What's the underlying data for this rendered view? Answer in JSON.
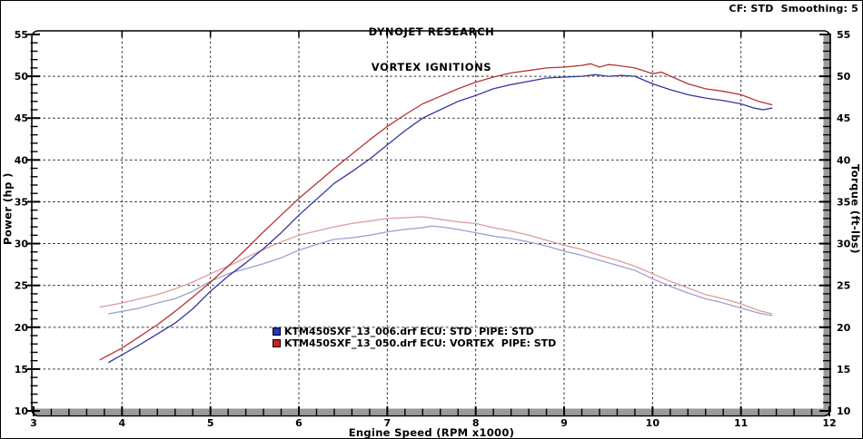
{
  "header": {
    "title_line1": "DYNOJET RESEARCH",
    "title_line2": "VORTEX IGNITIONS",
    "settings": "CF: STD  Smoothing: 5"
  },
  "axes": {
    "left_label": "Power (hp )",
    "right_label": "Torque (ft-lbs)",
    "x_label": "Engine Speed (RPM x1000)"
  },
  "legend": [
    {
      "color": "#2233cc",
      "label": "KTM450SXF_13_006.drf ECU: STD  PIPE: STD"
    },
    {
      "color": "#cc2222",
      "label": "KTM450SXF_13_050.drf ECU: VORTEX  PIPE: STD"
    }
  ],
  "chart_data": {
    "type": "line",
    "title": "DYNOJET RESEARCH VORTEX IGNITIONS",
    "xlabel": "Engine Speed (RPM x1000)",
    "ylabel_left": "Power (hp)",
    "ylabel_right": "Torque (ft-lbs)",
    "x_range": [
      3,
      12
    ],
    "y_range": [
      10,
      55
    ],
    "x_ticks": [
      3,
      4,
      5,
      6,
      7,
      8,
      9,
      10,
      11,
      12
    ],
    "y_ticks": [
      10,
      15,
      20,
      25,
      30,
      35,
      40,
      45,
      50,
      55
    ],
    "x_grid": [
      4,
      5,
      6,
      7,
      8,
      9,
      10,
      11
    ],
    "y_grid": [
      15,
      20,
      25,
      30,
      35,
      40,
      45,
      50
    ],
    "x_minor_step": 0.2,
    "y_minor_step": 1,
    "grid": {
      "color": "#2b2b2b",
      "gray_color": "#999999",
      "gray_line_value": 20
    },
    "frame": {
      "border_color": "#000000",
      "shadow_color": "#9a9a9a"
    },
    "series": [
      {
        "id": "torque-std",
        "name": "KTM450SXF_13_006.drf Torque (ft-lbs)",
        "color": "#9f9fd0",
        "points": [
          [
            3.85,
            21.6
          ],
          [
            4,
            21.9
          ],
          [
            4.2,
            22.3
          ],
          [
            4.4,
            22.9
          ],
          [
            4.6,
            23.4
          ],
          [
            4.8,
            24.3
          ],
          [
            5,
            25.5
          ],
          [
            5.2,
            26.4
          ],
          [
            5.4,
            27.0
          ],
          [
            5.6,
            27.6
          ],
          [
            5.8,
            28.3
          ],
          [
            6,
            29.2
          ],
          [
            6.2,
            29.9
          ],
          [
            6.4,
            30.5
          ],
          [
            6.6,
            30.7
          ],
          [
            6.8,
            31.0
          ],
          [
            7,
            31.4
          ],
          [
            7.2,
            31.7
          ],
          [
            7.4,
            31.9
          ],
          [
            7.5,
            32.1
          ],
          [
            7.6,
            32.0
          ],
          [
            7.8,
            31.7
          ],
          [
            8,
            31.3
          ],
          [
            8.2,
            30.9
          ],
          [
            8.4,
            30.6
          ],
          [
            8.6,
            30.2
          ],
          [
            8.8,
            29.7
          ],
          [
            9,
            29.1
          ],
          [
            9.2,
            28.6
          ],
          [
            9.4,
            28.0
          ],
          [
            9.6,
            27.4
          ],
          [
            9.8,
            26.8
          ],
          [
            10,
            25.8
          ],
          [
            10.2,
            24.9
          ],
          [
            10.4,
            24.1
          ],
          [
            10.6,
            23.4
          ],
          [
            10.8,
            22.9
          ],
          [
            11,
            22.3
          ],
          [
            11.2,
            21.7
          ],
          [
            11.35,
            21.4
          ]
        ]
      },
      {
        "id": "torque-vortex",
        "name": "KTM450SXF_13_050.drf Torque (ft-lbs)",
        "color": "#dd9c9c",
        "points": [
          [
            3.75,
            22.4
          ],
          [
            4,
            22.9
          ],
          [
            4.2,
            23.4
          ],
          [
            4.4,
            23.9
          ],
          [
            4.6,
            24.6
          ],
          [
            4.8,
            25.4
          ],
          [
            5,
            26.4
          ],
          [
            5.2,
            27.3
          ],
          [
            5.4,
            28.3
          ],
          [
            5.6,
            29.3
          ],
          [
            5.8,
            30.2
          ],
          [
            6,
            31.0
          ],
          [
            6.2,
            31.5
          ],
          [
            6.4,
            32.0
          ],
          [
            6.6,
            32.4
          ],
          [
            6.8,
            32.7
          ],
          [
            7,
            33.0
          ],
          [
            7.2,
            33.1
          ],
          [
            7.4,
            33.2
          ],
          [
            7.6,
            32.9
          ],
          [
            7.8,
            32.6
          ],
          [
            8,
            32.4
          ],
          [
            8.2,
            31.9
          ],
          [
            8.4,
            31.5
          ],
          [
            8.6,
            31.0
          ],
          [
            8.8,
            30.4
          ],
          [
            9,
            29.8
          ],
          [
            9.2,
            29.3
          ],
          [
            9.4,
            28.6
          ],
          [
            9.6,
            28.0
          ],
          [
            9.8,
            27.3
          ],
          [
            10,
            26.4
          ],
          [
            10.2,
            25.5
          ],
          [
            10.4,
            24.7
          ],
          [
            10.6,
            23.9
          ],
          [
            10.8,
            23.4
          ],
          [
            11,
            22.8
          ],
          [
            11.2,
            22.0
          ],
          [
            11.35,
            21.6
          ]
        ]
      },
      {
        "id": "power-std",
        "name": "KTM450SXF_13_006.drf Power (hp)",
        "color": "#3535a2",
        "points": [
          [
            3.85,
            15.8
          ],
          [
            4,
            16.7
          ],
          [
            4.2,
            17.9
          ],
          [
            4.4,
            19.2
          ],
          [
            4.6,
            20.5
          ],
          [
            4.8,
            22.2
          ],
          [
            5,
            24.3
          ],
          [
            5.2,
            26.1
          ],
          [
            5.4,
            27.7
          ],
          [
            5.6,
            29.4
          ],
          [
            5.8,
            31.3
          ],
          [
            6,
            33.4
          ],
          [
            6.2,
            35.3
          ],
          [
            6.4,
            37.2
          ],
          [
            6.6,
            38.6
          ],
          [
            6.8,
            40.1
          ],
          [
            7,
            41.8
          ],
          [
            7.2,
            43.5
          ],
          [
            7.4,
            45.0
          ],
          [
            7.6,
            46.0
          ],
          [
            7.8,
            47.0
          ],
          [
            8,
            47.7
          ],
          [
            8.2,
            48.5
          ],
          [
            8.4,
            49.0
          ],
          [
            8.6,
            49.4
          ],
          [
            8.8,
            49.8
          ],
          [
            9,
            49.9
          ],
          [
            9.2,
            50.0
          ],
          [
            9.35,
            50.2
          ],
          [
            9.5,
            50.0
          ],
          [
            9.65,
            50.1
          ],
          [
            9.8,
            50.0
          ],
          [
            10,
            49.1
          ],
          [
            10.2,
            48.4
          ],
          [
            10.4,
            47.8
          ],
          [
            10.6,
            47.4
          ],
          [
            10.8,
            47.1
          ],
          [
            11,
            46.7
          ],
          [
            11.15,
            46.2
          ],
          [
            11.25,
            46.0
          ],
          [
            11.35,
            46.2
          ]
        ]
      },
      {
        "id": "power-vortex",
        "name": "KTM450SXF_13_050.drf Power (hp)",
        "color": "#b53434",
        "points": [
          [
            3.75,
            16.1
          ],
          [
            4,
            17.5
          ],
          [
            4.2,
            18.9
          ],
          [
            4.4,
            20.3
          ],
          [
            4.6,
            21.9
          ],
          [
            4.8,
            23.6
          ],
          [
            5,
            25.4
          ],
          [
            5.2,
            27.3
          ],
          [
            5.4,
            29.3
          ],
          [
            5.6,
            31.4
          ],
          [
            5.8,
            33.4
          ],
          [
            6,
            35.4
          ],
          [
            6.2,
            37.2
          ],
          [
            6.4,
            39.0
          ],
          [
            6.6,
            40.7
          ],
          [
            6.8,
            42.4
          ],
          [
            7,
            44.0
          ],
          [
            7.2,
            45.4
          ],
          [
            7.4,
            46.7
          ],
          [
            7.6,
            47.6
          ],
          [
            7.8,
            48.5
          ],
          [
            8,
            49.3
          ],
          [
            8.2,
            49.9
          ],
          [
            8.4,
            50.4
          ],
          [
            8.6,
            50.7
          ],
          [
            8.8,
            51.0
          ],
          [
            9,
            51.1
          ],
          [
            9.2,
            51.3
          ],
          [
            9.3,
            51.5
          ],
          [
            9.4,
            51.1
          ],
          [
            9.5,
            51.4
          ],
          [
            9.6,
            51.3
          ],
          [
            9.8,
            51.0
          ],
          [
            10,
            50.3
          ],
          [
            10.1,
            50.5
          ],
          [
            10.25,
            49.8
          ],
          [
            10.4,
            49.1
          ],
          [
            10.6,
            48.5
          ],
          [
            10.8,
            48.2
          ],
          [
            11,
            47.8
          ],
          [
            11.2,
            47.0
          ],
          [
            11.35,
            46.6
          ]
        ]
      }
    ]
  }
}
